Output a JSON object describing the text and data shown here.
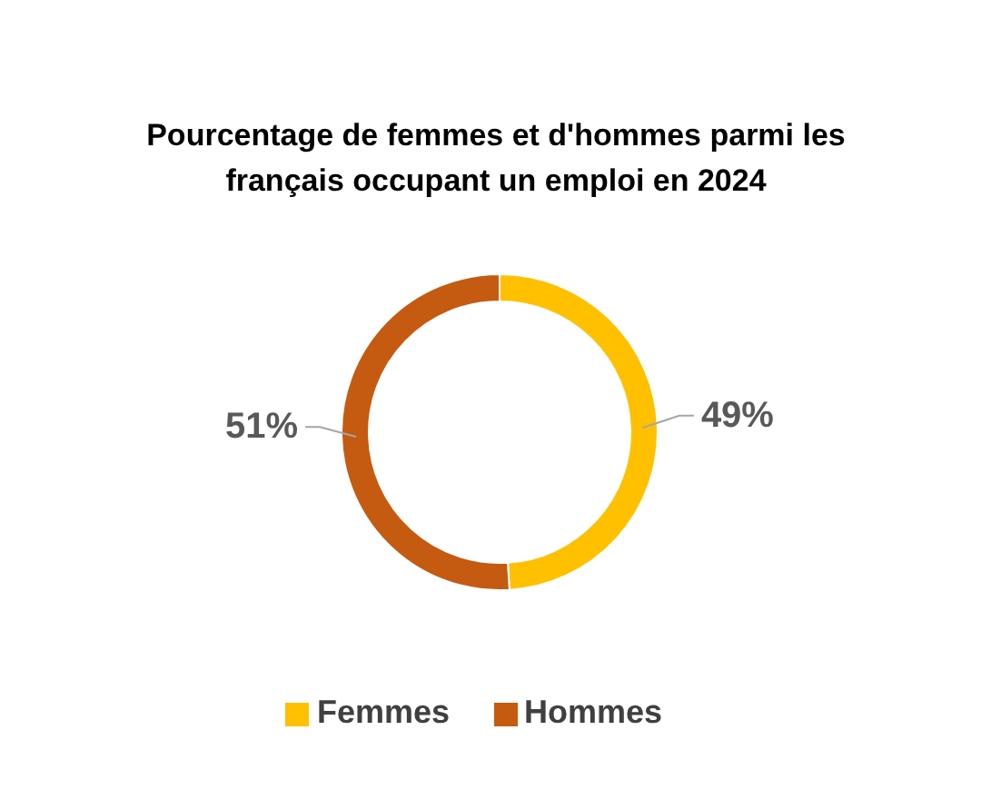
{
  "chart_data": {
    "type": "donut",
    "title": "Pourcentage de femmes et d'hommes parmi les français occupant un emploi en 2024",
    "categories": [
      "Femmes",
      "Hommes"
    ],
    "values": [
      49,
      51
    ],
    "colors": [
      "#ffc000",
      "#c55a11"
    ],
    "value_labels": [
      "49%",
      "51%"
    ],
    "legend": "bottom"
  }
}
